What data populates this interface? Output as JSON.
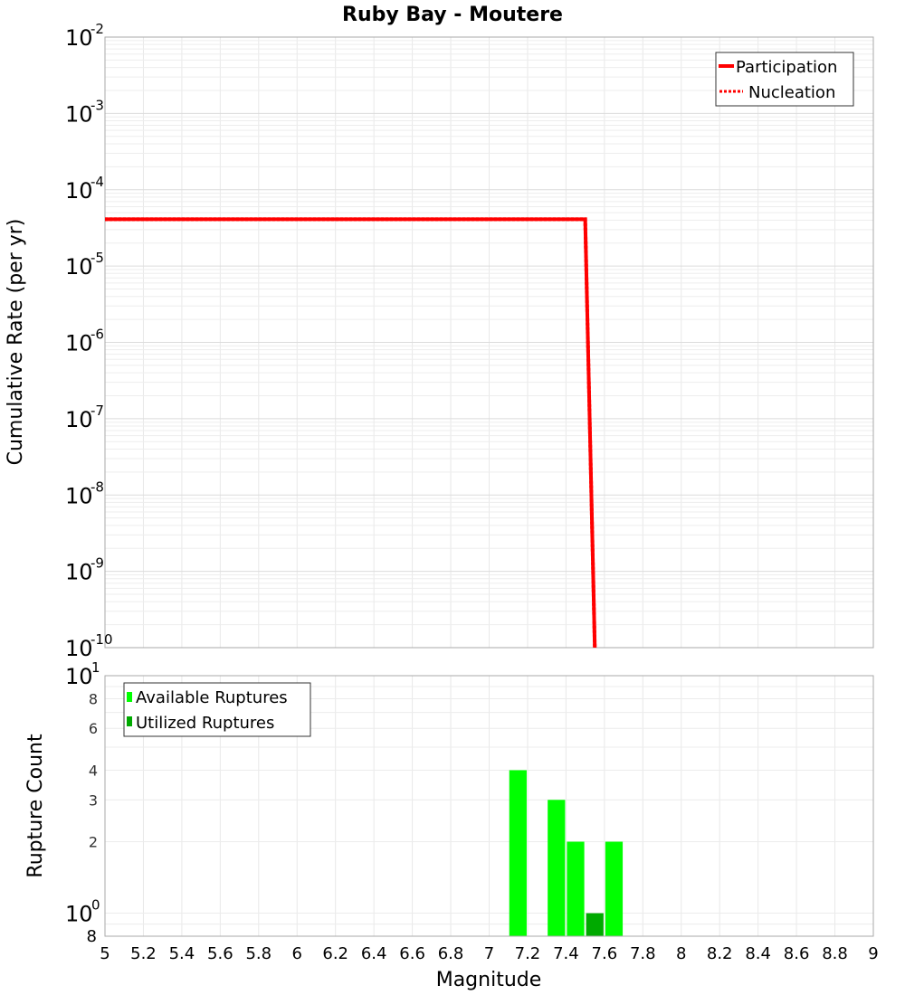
{
  "chart_data": [
    {
      "type": "line",
      "title": "Ruby Bay - Moutere",
      "xlabel": "Magnitude",
      "ylabel": "Cumulative Rate (per yr)",
      "xlim": [
        5,
        9
      ],
      "ylim": [
        1e-10,
        0.01
      ],
      "yscale": "log",
      "grid": true,
      "legend_position": "top-right",
      "y_tick_labels": [
        "10-2",
        "10-3",
        "10-4",
        "10-5",
        "10-6",
        "10-7",
        "10-8",
        "10-9",
        "10-10"
      ],
      "series": [
        {
          "name": "Participation",
          "style": "solid",
          "color": "#ff0000",
          "x": [
            5.0,
            7.5,
            7.55
          ],
          "y": [
            4.1e-05,
            4.1e-05,
            1e-10
          ]
        },
        {
          "name": "Nucleation",
          "style": "dotted",
          "color": "#ff0000",
          "x": [
            5.0,
            7.5,
            7.55
          ],
          "y": [
            4.1e-05,
            4.1e-05,
            1e-10
          ]
        }
      ]
    },
    {
      "type": "bar",
      "xlabel": "Magnitude",
      "ylabel": "Rupture Count",
      "xlim": [
        5,
        9
      ],
      "ylim": [
        0.8,
        10
      ],
      "yscale": "log",
      "grid": true,
      "legend_position": "top-left",
      "x_tick_labels": [
        "5",
        "5.2",
        "5.4",
        "5.6",
        "5.8",
        "6",
        "6.2",
        "6.4",
        "6.6",
        "6.8",
        "7",
        "7.2",
        "7.4",
        "7.6",
        "7.8",
        "8",
        "8.2",
        "8.4",
        "8.6",
        "8.8",
        "9"
      ],
      "y_tick_labels": [
        "8",
        "10^0",
        "2",
        "3",
        "4",
        "6",
        "8",
        "10^1"
      ],
      "categories": [
        7.15,
        7.35,
        7.45,
        7.55,
        7.65
      ],
      "series": [
        {
          "name": "Available Ruptures",
          "color": "#00ff00",
          "values": [
            4,
            3,
            2,
            null,
            2
          ]
        },
        {
          "name": "Utilized Ruptures",
          "color": "#00aa00",
          "values": [
            null,
            null,
            null,
            1,
            null
          ]
        }
      ]
    }
  ],
  "labels": {
    "title": "Ruby Bay - Moutere",
    "top_ylabel": "Cumulative Rate (per yr)",
    "bottom_ylabel": "Rupture Count",
    "xlabel": "Magnitude",
    "legend_top": [
      "Participation",
      "Nucleation"
    ],
    "legend_bottom": [
      "Available Ruptures",
      "Utilized Ruptures"
    ]
  },
  "colors": {
    "participation": "#ff0000",
    "available": "#00ff00",
    "utilized": "#00aa00",
    "grid": "#e8e8e8",
    "frame": "#aaaaaa"
  }
}
